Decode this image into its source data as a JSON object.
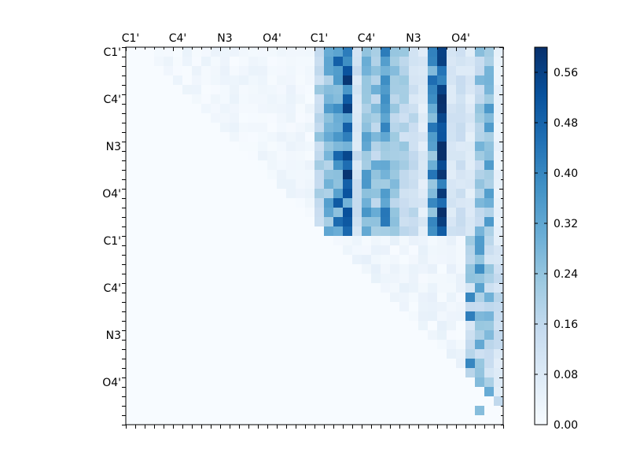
{
  "chart_data": {
    "type": "heatmap",
    "title": "",
    "xlabel": "",
    "ylabel": "",
    "n": 40,
    "x_tick_labels": [
      "C1'",
      "C4'",
      "N3",
      "O4'",
      "C1'",
      "C4'",
      "N3",
      "O4'"
    ],
    "y_tick_labels": [
      "C1'",
      "C4'",
      "N3",
      "O4'",
      "C1'",
      "C4'",
      "N3",
      "O4'"
    ],
    "tick_label_indices": [
      0,
      5,
      10,
      15,
      20,
      25,
      30,
      35
    ],
    "colormap": "Blues",
    "color_low": "#f7fbff",
    "color_high": "#08306b",
    "vmin": 0.0,
    "vmax": 0.6,
    "colorbar_ticks": [
      "0.00",
      "0.08",
      "0.16",
      "0.24",
      "0.32",
      "0.40",
      "0.48",
      "0.56"
    ],
    "colorbar_tick_values": [
      0.0,
      0.08,
      0.16,
      0.24,
      0.32,
      0.4,
      0.48,
      0.56
    ],
    "hot_columns": [
      {
        "col": 20,
        "value": 0.2
      },
      {
        "col": 21,
        "value": 0.28
      },
      {
        "col": 22,
        "value": 0.4
      },
      {
        "col": 23,
        "value": 0.46
      },
      {
        "col": 24,
        "value": 0.12
      },
      {
        "col": 25,
        "value": 0.3
      },
      {
        "col": 26,
        "value": 0.24
      },
      {
        "col": 27,
        "value": 0.34
      },
      {
        "col": 28,
        "value": 0.22
      },
      {
        "col": 29,
        "value": 0.18
      },
      {
        "col": 30,
        "value": 0.14
      },
      {
        "col": 31,
        "value": 0.08
      },
      {
        "col": 32,
        "value": 0.36
      },
      {
        "col": 33,
        "value": 0.56
      },
      {
        "col": 34,
        "value": 0.1
      },
      {
        "col": 35,
        "value": 0.12
      },
      {
        "col": 36,
        "value": 0.08
      },
      {
        "col": 37,
        "value": 0.22
      },
      {
        "col": 38,
        "value": 0.28
      }
    ],
    "lower_block_hot_columns": [
      {
        "col": 36,
        "value": 0.22
      },
      {
        "col": 37,
        "value": 0.3
      },
      {
        "col": 38,
        "value": 0.24
      },
      {
        "col": 39,
        "value": 0.14
      }
    ],
    "upper_region_background": 0.04,
    "notes_cells": [
      {
        "row": 15,
        "col": 33,
        "value": 0.58
      },
      {
        "row": 4,
        "col": 33,
        "value": 0.56
      },
      {
        "row": 5,
        "col": 23,
        "value": 0.5
      },
      {
        "row": 12,
        "col": 33,
        "value": 0.54
      },
      {
        "row": 15,
        "col": 23,
        "value": 0.52
      },
      {
        "row": 19,
        "col": 33,
        "value": 0.5
      },
      {
        "row": 26,
        "col": 36,
        "value": 0.4
      },
      {
        "row": 28,
        "col": 36,
        "value": 0.42
      },
      {
        "row": 33,
        "col": 36,
        "value": 0.4
      },
      {
        "row": 38,
        "col": 37,
        "value": 0.26
      }
    ]
  }
}
